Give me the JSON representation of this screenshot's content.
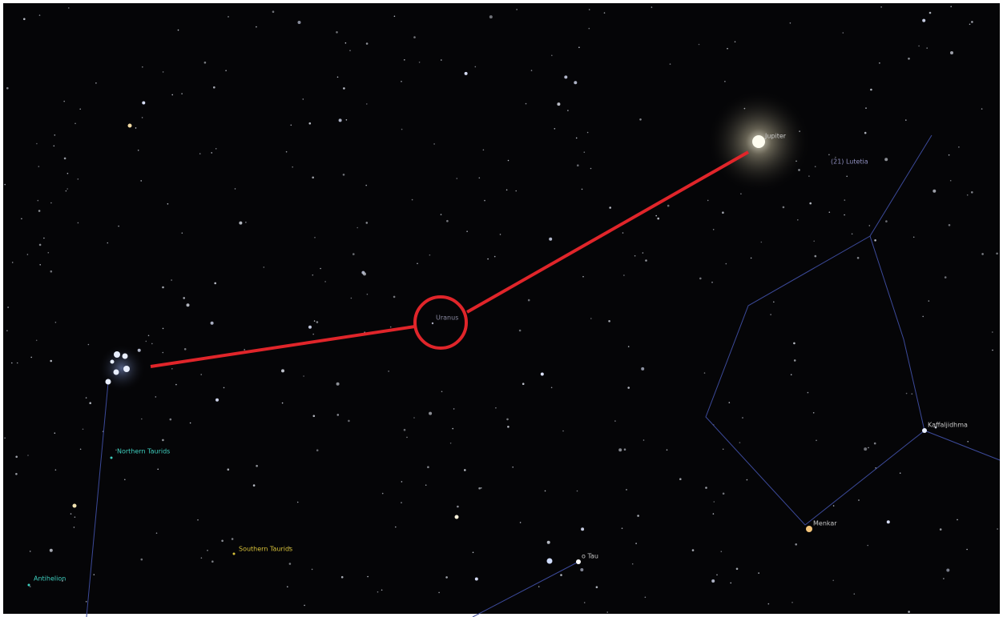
{
  "labels": [
    "Jupiter",
    "(21) Lutetia",
    "Uranus",
    "Northern Taurids",
    "Southern Taurids",
    "Antihelion",
    "Kaffaljidhma",
    "Menkar",
    "o Tau"
  ]
}
